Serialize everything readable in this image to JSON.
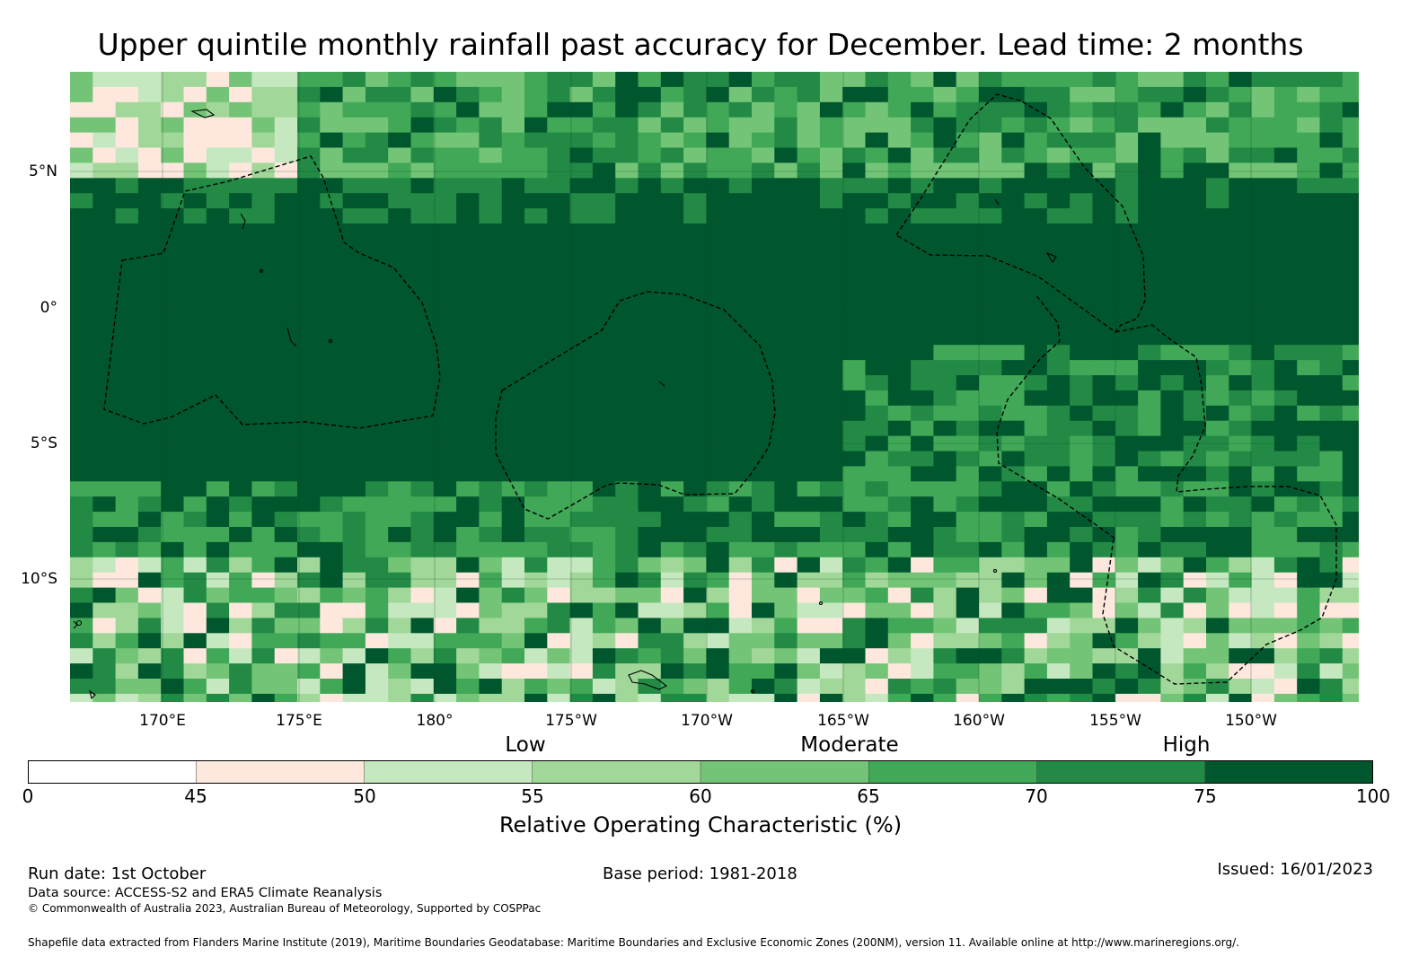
{
  "title": "Upper quintile monthly rainfall past accuracy for December. Lead time: 2 months",
  "map": {
    "region": "Western/central Pacific, approx. 167°E–146°W, 14°S–8°N",
    "lat_labels": [
      "5°N",
      "0°",
      "5°S",
      "10°S"
    ],
    "lon_labels": [
      "170°E",
      "175°E",
      "180°",
      "175°W",
      "170°W",
      "165°W",
      "160°W",
      "155°W",
      "150°W"
    ],
    "features": [
      "roc-grid-cells",
      "eez-dashed-boundaries",
      "island-coastlines"
    ]
  },
  "colorbar": {
    "categories": [
      "Low",
      "Moderate",
      "High"
    ],
    "ticks": [
      "0",
      "45",
      "50",
      "55",
      "60",
      "65",
      "70",
      "75",
      "100"
    ],
    "bins": [
      {
        "range": "0-45",
        "color": "#ffffff"
      },
      {
        "range": "45-50",
        "color": "#fee8de"
      },
      {
        "range": "50-55",
        "color": "#c6e8c0"
      },
      {
        "range": "55-60",
        "color": "#a1d899"
      },
      {
        "range": "60-65",
        "color": "#73c476"
      },
      {
        "range": "65-70",
        "color": "#40a857"
      },
      {
        "range": "70-75",
        "color": "#228a45"
      },
      {
        "range": "75-100",
        "color": "#00572e"
      }
    ],
    "label": "Relative Operating Characteristic (%)"
  },
  "footer": {
    "run_date": "Run date: 1st October",
    "base_period": "Base period: 1981-2018",
    "issued": "Issued: 16/01/2023",
    "data_source": "Data source: ACCESS-S2 and ERA5 Climate Reanalysis",
    "copyright": "© Commonwealth of Australia 2023, Australian Bureau of Meteorology, Supported by COSPPac",
    "shapefile": "Shapefile data extracted from Flanders Marine Institute (2019), Maritime Boundaries Geodatabase: Maritime Boundaries and Exclusive Economic Zones (200NM), version 11. Available online at http://www.marineregions.org/."
  }
}
